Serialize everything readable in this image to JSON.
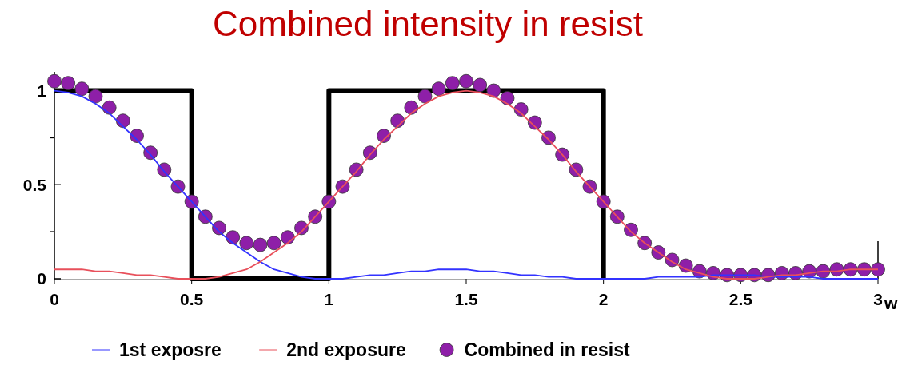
{
  "chart_data": {
    "type": "line",
    "title": "Combined intensity in resist",
    "xlabel": "w",
    "xlim": [
      0,
      3
    ],
    "xticks": [
      0,
      0.5,
      1,
      1.5,
      2,
      2.5,
      3
    ],
    "ylim": [
      0,
      1.1
    ],
    "yticks": [
      0,
      {
        "value": 0.25,
        "label": null
      },
      0.5,
      {
        "value": 0.75,
        "label": null
      },
      1
    ],
    "grid": false,
    "legend": "bottom",
    "x": [
      0,
      0.05,
      0.1,
      0.15,
      0.2,
      0.25,
      0.3,
      0.35,
      0.4,
      0.45,
      0.5,
      0.55,
      0.6,
      0.65,
      0.7,
      0.75,
      0.8,
      0.85,
      0.9,
      0.95,
      1,
      1.05,
      1.1,
      1.15,
      1.2,
      1.25,
      1.3,
      1.35,
      1.4,
      1.45,
      1.5,
      1.55,
      1.6,
      1.65,
      1.7,
      1.75,
      1.8,
      1.85,
      1.9,
      1.95,
      2,
      2.05,
      2.1,
      2.15,
      2.2,
      2.25,
      2.3,
      2.35,
      2.4,
      2.45,
      2.5,
      2.55,
      2.6,
      2.65,
      2.7,
      2.75,
      2.8,
      2.85,
      2.9,
      2.95,
      3
    ],
    "series": [
      {
        "type": "line",
        "color": "#000000",
        "x": [
          0,
          0.5,
          0.5,
          1,
          1,
          2,
          2
        ],
        "values": [
          1,
          1,
          0,
          0,
          1,
          1,
          0
        ]
      },
      {
        "type": "line",
        "name": "1st exposre",
        "color": "#3333ff",
        "values": [
          1,
          0.99,
          0.97,
          0.93,
          0.88,
          0.81,
          0.74,
          0.66,
          0.57,
          0.49,
          0.41,
          0.33,
          0.25,
          0.19,
          0.14,
          0.09,
          0.05,
          0.03,
          0.01,
          0,
          0,
          0,
          0.01,
          0.02,
          0.02,
          0.03,
          0.04,
          0.04,
          0.05,
          0.05,
          0.05,
          0.04,
          0.04,
          0.03,
          0.02,
          0.02,
          0.01,
          0.01,
          0,
          0,
          0,
          0,
          0,
          0,
          0.01,
          0.01,
          0.01,
          0.01,
          0.02,
          0.02,
          0.02,
          0.02,
          0.01,
          0.01,
          0.01,
          0.01,
          0,
          0,
          0,
          0,
          0
        ]
      },
      {
        "type": "line",
        "name": "2nd exposure",
        "color": "#e8505b",
        "values": [
          0.05,
          0.05,
          0.05,
          0.04,
          0.04,
          0.03,
          0.02,
          0.02,
          0.01,
          0,
          0,
          0,
          0.01,
          0.03,
          0.05,
          0.09,
          0.14,
          0.19,
          0.25,
          0.33,
          0.41,
          0.49,
          0.57,
          0.66,
          0.74,
          0.81,
          0.88,
          0.93,
          0.97,
          0.99,
          1,
          0.99,
          0.97,
          0.93,
          0.88,
          0.81,
          0.74,
          0.66,
          0.57,
          0.49,
          0.41,
          0.33,
          0.25,
          0.19,
          0.14,
          0.09,
          0.05,
          0.03,
          0.01,
          0,
          0,
          0,
          0.01,
          0.02,
          0.02,
          0.03,
          0.04,
          0.04,
          0.05,
          0.05,
          0.05
        ]
      },
      {
        "type": "scatter",
        "name": "Combined in resist",
        "color": "#8e1fa8",
        "marker": "circle",
        "values": [
          1.05,
          1.04,
          1.01,
          0.97,
          0.91,
          0.84,
          0.76,
          0.67,
          0.58,
          0.49,
          0.41,
          0.33,
          0.27,
          0.22,
          0.19,
          0.18,
          0.19,
          0.22,
          0.27,
          0.33,
          0.41,
          0.49,
          0.58,
          0.67,
          0.76,
          0.84,
          0.91,
          0.97,
          1.01,
          1.04,
          1.05,
          1.03,
          1.0,
          0.96,
          0.9,
          0.83,
          0.75,
          0.66,
          0.58,
          0.49,
          0.41,
          0.33,
          0.26,
          0.19,
          0.14,
          0.1,
          0.07,
          0.04,
          0.03,
          0.02,
          0.02,
          0.02,
          0.02,
          0.03,
          0.03,
          0.04,
          0.04,
          0.05,
          0.05,
          0.05,
          0.05
        ]
      }
    ]
  }
}
